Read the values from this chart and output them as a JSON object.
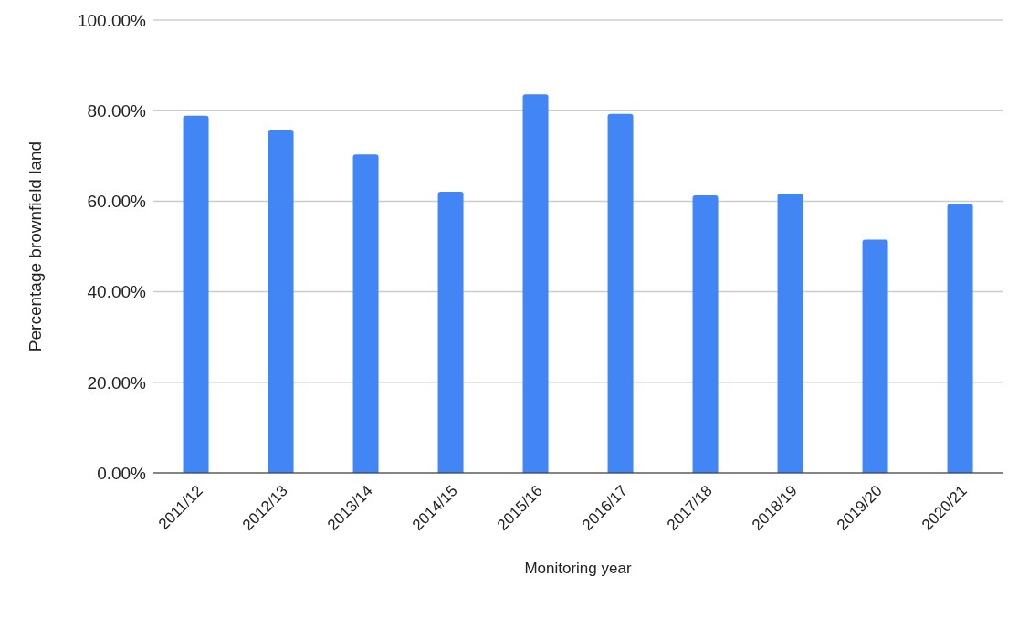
{
  "chart_data": {
    "type": "bar",
    "xlabel": "Monitoring year",
    "ylabel": "Percentage brownfield land",
    "categories": [
      "2011/12",
      "2012/13",
      "2013/14",
      "2014/15",
      "2015/16",
      "2016/17",
      "2017/18",
      "2018/19",
      "2019/20",
      "2020/21"
    ],
    "values": [
      78.9,
      75.8,
      70.3,
      62.1,
      83.6,
      79.3,
      61.3,
      61.7,
      51.5,
      59.4
    ],
    "color": "#4285f4",
    "ylim": [
      0,
      100
    ],
    "yticks": [
      {
        "value": 0,
        "label": "0.00%"
      },
      {
        "value": 20,
        "label": "20.00%"
      },
      {
        "value": 40,
        "label": "40.00%"
      },
      {
        "value": 60,
        "label": "60.00%"
      },
      {
        "value": 80,
        "label": "80.00%"
      },
      {
        "value": 100,
        "label": "100.00%"
      }
    ],
    "grid": "y"
  }
}
